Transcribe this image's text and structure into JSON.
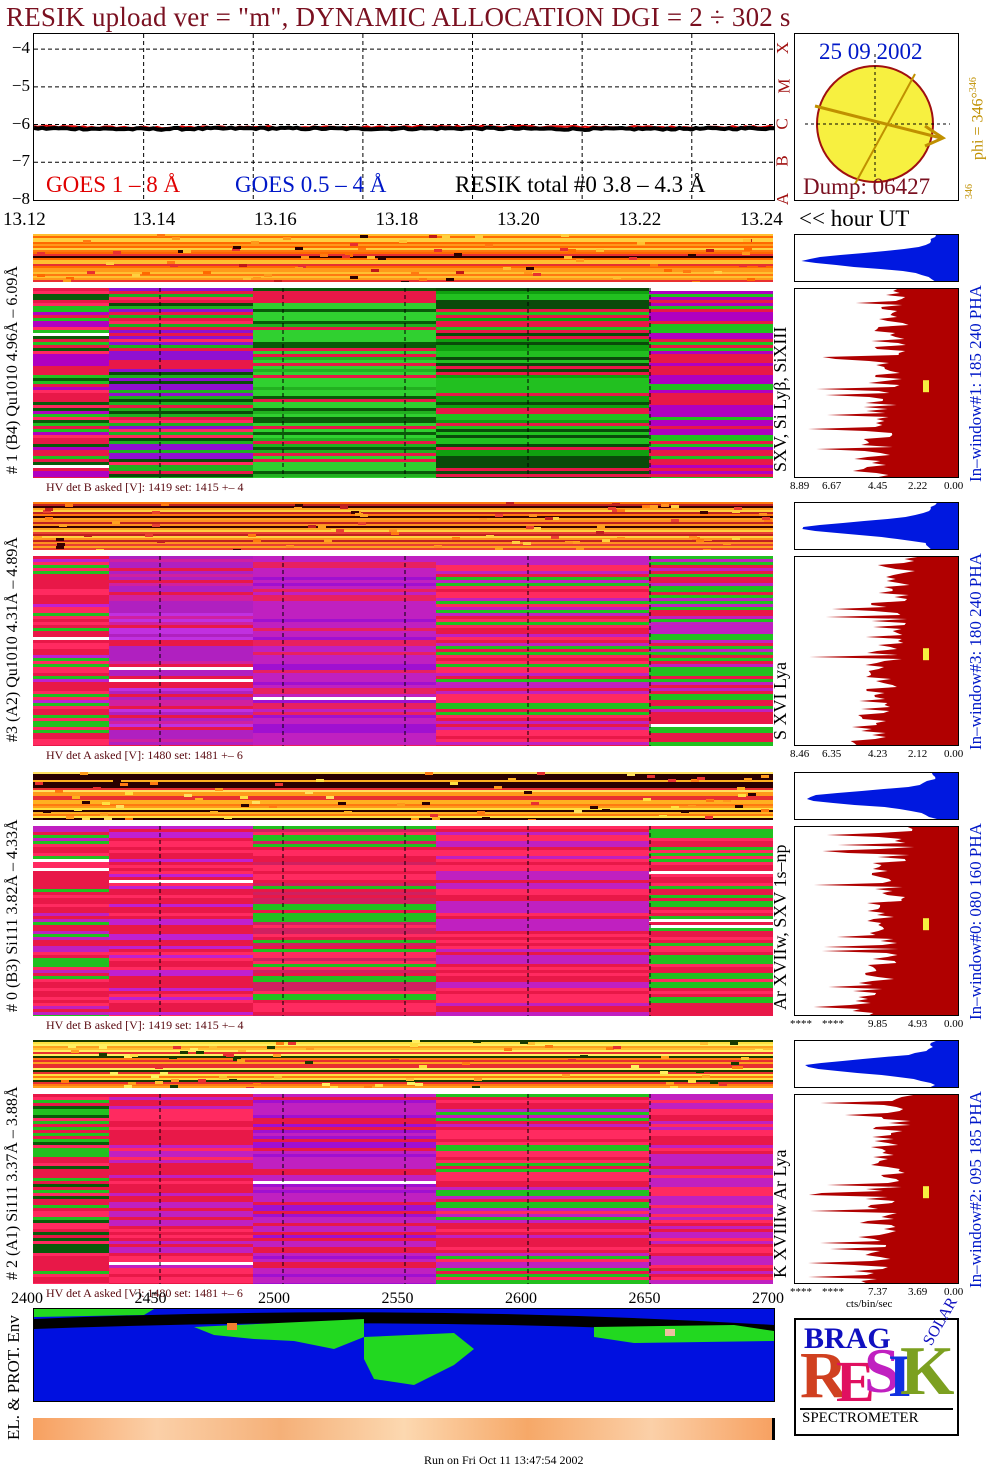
{
  "header": {
    "title": "RESIK upload ver = \"m\", DYNAMIC ALLOCATION  DGI =   2 ÷ 302 s"
  },
  "lightcurve": {
    "yticks": [
      "−4",
      "−5",
      "−6",
      "−7",
      "−8"
    ],
    "flare_classes": [
      "X",
      "M",
      "C",
      "B",
      "A"
    ],
    "legend_goes_long": "GOES 1 – 8 Å",
    "legend_goes_short": "GOES 0.5 – 4 Å",
    "legend_resik": "RESIK total #0  3.8 – 4.3 Å",
    "colors": {
      "goes_long": "#e00000",
      "goes_short": "#0018c8",
      "resik": "#000000"
    }
  },
  "sun_panel": {
    "date": "25 09 2002",
    "dump": "Dump: 06427",
    "phi_label": "phi = 346°",
    "phi_sup": "346",
    "phi_bottom": "346"
  },
  "time_axis": {
    "ticks": [
      "13.12",
      "13.14",
      "13.16",
      "13.18",
      "13.20",
      "13.22",
      "13.24"
    ],
    "unit_label": "<< hour UT"
  },
  "detectors": [
    {
      "label": "# 1 (B4) Qu1010 4.96Å – 6.09Å",
      "lines": "SXV, Si Lyβ, SiXIII",
      "window": "In–window#1:  185 240 PHA",
      "hv": "HV det B asked [V]:  1419 set:  1415  +–    4",
      "scale": [
        "8.89",
        "6.67",
        "4.45",
        "2.22",
        "0.00"
      ]
    },
    {
      "label": "#3 (A2) Qu1010  4.31Å – 4.89Å",
      "lines": "S XVI Lya",
      "window": "In–window#3:  180 240 PHA",
      "hv": "HV det A asked [V]:  1480 set:  1481  +–    6",
      "scale": [
        "8.46",
        "6.35",
        "4.23",
        "2.12",
        "0.00"
      ]
    },
    {
      "label": "# 0 (B3) Si111  3.82Å – 4.33Å",
      "lines": "Ar XVIIw,  SXV 1s–np",
      "window": "In–window#0:  080 160 PHA",
      "hv": "HV det B asked [V]:  1419 set:  1415  +–    4",
      "scale": [
        "****",
        "****",
        "9.85",
        "4.93",
        "0.00"
      ]
    },
    {
      "label": "# 2 (A1) Si111  3.37Å – 3.88Å",
      "lines": "K XVIIIw  Ar Lya",
      "window": "In–window#2:  095 185 PHA",
      "hv": "HV det A asked [V]:  1480 set:  1481  +–    6",
      "scale": [
        "****",
        "****",
        "7.37",
        "3.69",
        "0.00"
      ],
      "unit": "cts/bin/sec"
    }
  ],
  "env_axis": {
    "ticks": [
      "2400",
      "2450",
      "2500",
      "2550",
      "2600",
      "2650",
      "2700"
    ],
    "label": "EL. & PROT. Env"
  },
  "logo": {
    "letters": [
      "R",
      "E",
      "S",
      "I",
      "K"
    ],
    "top_words": [
      "BRAG",
      "SOLAR"
    ],
    "caption": "SPECTROMETER"
  },
  "footer": {
    "run": "Run on Fri Oct 11 13:47:54 2002"
  },
  "chart_data": {
    "type": "line",
    "title": "RESIK upload ver = \"m\", DYNAMIC ALLOCATION  DGI =   2 ÷ 302 s",
    "xlabel": "hour UT",
    "ylabel": "",
    "xlim": [
      13.12,
      13.255
    ],
    "ylim": [
      -8,
      -3.6
    ],
    "x": [
      13.12,
      13.14,
      13.16,
      13.18,
      13.2,
      13.22,
      13.24,
      13.255
    ],
    "series": [
      {
        "name": "GOES 1 – 8 Å",
        "values": [
          -6.05,
          -6.08,
          -6.06,
          -6.07,
          -6.05,
          -6.06,
          -6.07,
          -6.06
        ]
      },
      {
        "name": "RESIK total #0  3.8 – 4.3 Å",
        "values": [
          -6.1,
          -6.12,
          -6.1,
          -6.11,
          -6.1,
          -6.12,
          -6.11,
          -6.1
        ]
      }
    ]
  }
}
